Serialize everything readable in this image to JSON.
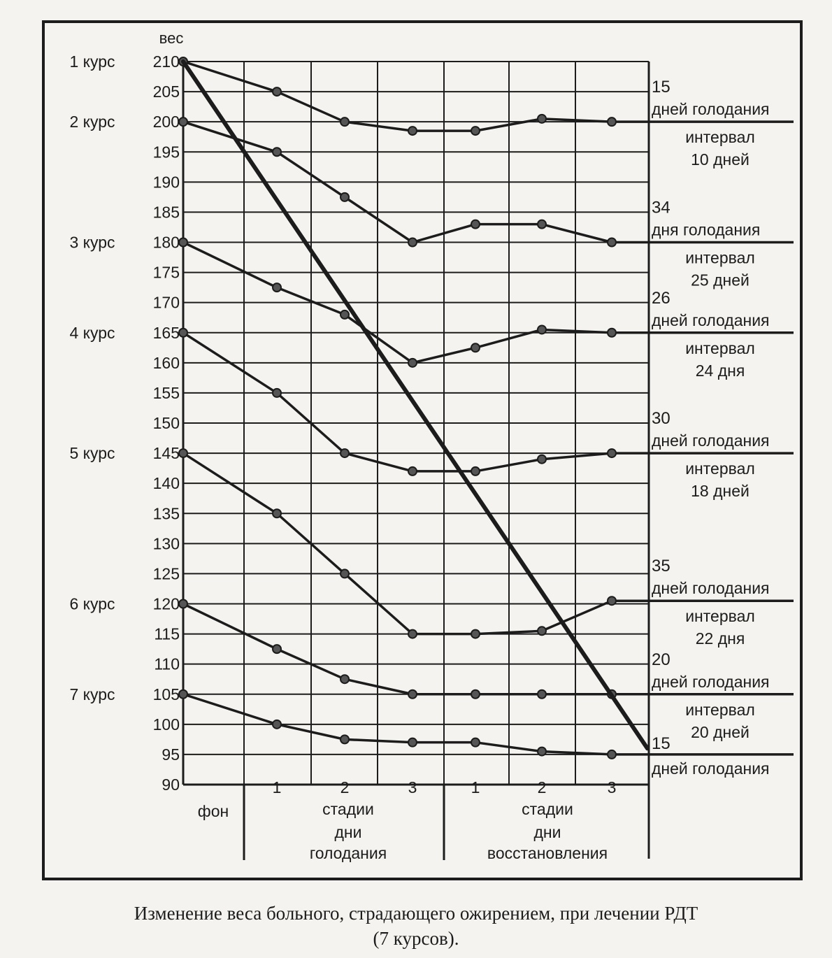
{
  "caption": {
    "line1": "Изменение веса больного, страдающего ожирением, при лечении РДТ",
    "line2": "(7 курсов)."
  },
  "colors": {
    "ink": "#1c1c1c",
    "paper": "#f4f3ef"
  },
  "chart_data": {
    "type": "line",
    "ylabel": "вес",
    "ylim": [
      90,
      210
    ],
    "ytick_step": 5,
    "ytick_labels": [
      "210",
      "205",
      "200",
      "195",
      "190",
      "185",
      "180",
      "175",
      "170",
      "165",
      "160",
      "155",
      "150",
      "145",
      "140",
      "135",
      "130",
      "125",
      "120",
      "115",
      "110",
      "105",
      "100",
      "95",
      "90"
    ],
    "grid": true,
    "xgroups": {
      "background": "фон",
      "starvation": {
        "stage_label": "стадии",
        "days_label": "дни голодания"
      },
      "recovery": {
        "stage_label": "стадии",
        "days_label": "дни восстановления"
      }
    },
    "x": [
      "фон",
      "голодание 1",
      "голодание 2",
      "голодание 3",
      "восстановление 1",
      "восстановление 2",
      "восстановление 3"
    ],
    "xtick_labels": [
      "",
      "1",
      "2",
      "3",
      "1",
      "2",
      "3"
    ],
    "series": [
      {
        "name": "1 курс",
        "values": [
          210,
          205,
          200,
          198.5,
          198.5,
          200.5,
          200
        ],
        "annotation": {
          "count": "15",
          "text": "дней голодания",
          "interval": "интервал",
          "interval_days": "10 дней"
        }
      },
      {
        "name": "2 курс",
        "values": [
          200,
          195,
          187.5,
          180,
          183,
          183,
          180
        ],
        "annotation": {
          "count": "34",
          "text": "дня голодания",
          "interval": "интервал",
          "interval_days": "25 дней"
        }
      },
      {
        "name": "3 курс",
        "values": [
          180,
          172.5,
          168,
          160,
          162.5,
          165.5,
          165
        ],
        "annotation": {
          "count": "26",
          "text": "дней голодания",
          "interval": "интервал",
          "interval_days": "24 дня"
        }
      },
      {
        "name": "4 курс",
        "values": [
          165,
          155,
          145,
          142,
          142,
          144,
          145
        ],
        "annotation": {
          "count": "30",
          "text": "дней голодания",
          "interval": "интервал",
          "interval_days": "18 дней"
        }
      },
      {
        "name": "5 курс",
        "values": [
          145,
          135,
          125,
          115,
          115,
          115.5,
          120.5
        ],
        "annotation": {
          "count": "35",
          "text": "дней голодания",
          "interval": "интервал",
          "interval_days": "22 дня"
        }
      },
      {
        "name": "6 курс",
        "values": [
          120,
          112.5,
          107.5,
          105,
          105,
          105,
          105
        ],
        "annotation": {
          "count": "20",
          "text": "дней голодания",
          "interval": "интервал",
          "interval_days": "20 дней"
        }
      },
      {
        "name": "7 курс",
        "values": [
          105,
          100,
          97.5,
          97,
          97,
          95.5,
          95
        ],
        "annotation": {
          "count": "15",
          "text": "дней голодания"
        }
      }
    ],
    "trend": {
      "from": 210,
      "to": 96
    }
  }
}
